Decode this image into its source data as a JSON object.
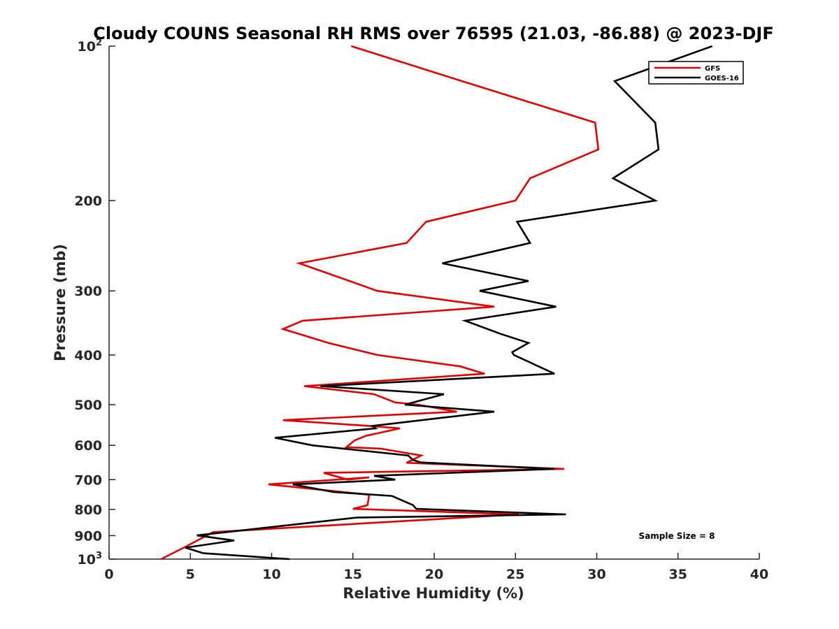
{
  "chart_data": {
    "type": "line",
    "title": "Cloudy COUNS Seasonal RH RMS over 76595 (21.03, -86.88) @ 2023-DJF",
    "xlabel": "Relative Humidity (%)",
    "ylabel": "Pressure (mb)",
    "xlim": [
      0,
      40
    ],
    "ylim": [
      100,
      1000
    ],
    "yscale": "log",
    "y_reversed": true,
    "x_ticks": [
      0,
      5,
      10,
      15,
      20,
      25,
      30,
      35,
      40
    ],
    "y_ticks": [
      {
        "value": 100,
        "label": "10",
        "sup": "2"
      },
      {
        "value": 200,
        "label": "200",
        "sup": ""
      },
      {
        "value": 300,
        "label": "300",
        "sup": ""
      },
      {
        "value": 400,
        "label": "400",
        "sup": ""
      },
      {
        "value": 500,
        "label": "500",
        "sup": ""
      },
      {
        "value": 600,
        "label": "600",
        "sup": ""
      },
      {
        "value": 700,
        "label": "700",
        "sup": ""
      },
      {
        "value": 800,
        "label": "800",
        "sup": ""
      },
      {
        "value": 900,
        "label": "900",
        "sup": ""
      },
      {
        "value": 1000,
        "label": "10",
        "sup": "3"
      }
    ],
    "legend_position": "top-right",
    "annotation": "Sample Size = 8",
    "series": [
      {
        "name": "GFS",
        "color": "#e00000",
        "points": [
          [
            14.9,
            100
          ],
          [
            21.7,
            117
          ],
          [
            29.9,
            141
          ],
          [
            30.1,
            159
          ],
          [
            25.9,
            181
          ],
          [
            25.0,
            200
          ],
          [
            19.5,
            220
          ],
          [
            18.3,
            242
          ],
          [
            11.7,
            265
          ],
          [
            14.8,
            287
          ],
          [
            16.5,
            300
          ],
          [
            23.7,
            322
          ],
          [
            11.9,
            343
          ],
          [
            10.7,
            356
          ],
          [
            13.5,
            379
          ],
          [
            16.5,
            400
          ],
          [
            21.6,
            421
          ],
          [
            23.1,
            435
          ],
          [
            12.0,
            460
          ],
          [
            16.3,
            477
          ],
          [
            17.6,
            495
          ],
          [
            19.0,
            500
          ],
          [
            21.4,
            516
          ],
          [
            10.7,
            536
          ],
          [
            16.0,
            550
          ],
          [
            17.9,
            556
          ],
          [
            15.8,
            575
          ],
          [
            15.1,
            587
          ],
          [
            14.6,
            605
          ],
          [
            16.7,
            609
          ],
          [
            19.2,
            628
          ],
          [
            18.3,
            649
          ],
          [
            28.0,
            667
          ],
          [
            13.2,
            679
          ],
          [
            14.7,
            700
          ],
          [
            16.0,
            693
          ],
          [
            9.8,
            715
          ],
          [
            16.0,
            749
          ],
          [
            15.9,
            785
          ],
          [
            15.0,
            798
          ],
          [
            25.2,
            818
          ],
          [
            6.4,
            886
          ],
          [
            4.6,
            950
          ],
          [
            3.2,
            1000
          ]
        ]
      },
      {
        "name": "GOES-16",
        "color": "#000000",
        "points": [
          [
            37.1,
            100
          ],
          [
            31.1,
            117
          ],
          [
            33.6,
            141
          ],
          [
            33.8,
            159
          ],
          [
            31.0,
            181
          ],
          [
            33.6,
            200
          ],
          [
            25.1,
            220
          ],
          [
            25.9,
            242
          ],
          [
            20.5,
            265
          ],
          [
            25.8,
            287
          ],
          [
            22.8,
            300
          ],
          [
            27.5,
            322
          ],
          [
            21.9,
            343
          ],
          [
            24.1,
            364
          ],
          [
            25.8,
            379
          ],
          [
            24.8,
            395
          ],
          [
            24.9,
            400
          ],
          [
            27.4,
            435
          ],
          [
            13.0,
            460
          ],
          [
            20.6,
            477
          ],
          [
            18.2,
            500
          ],
          [
            23.7,
            516
          ],
          [
            16.2,
            550
          ],
          [
            16.4,
            556
          ],
          [
            10.2,
            580
          ],
          [
            12.5,
            600
          ],
          [
            18.4,
            628
          ],
          [
            18.7,
            641
          ],
          [
            19.2,
            648
          ],
          [
            27.4,
            667
          ],
          [
            16.3,
            688
          ],
          [
            17.6,
            700
          ],
          [
            11.3,
            715
          ],
          [
            13.8,
            740
          ],
          [
            17.4,
            753
          ],
          [
            18.7,
            785
          ],
          [
            18.9,
            798
          ],
          [
            28.1,
            818
          ],
          [
            15.2,
            830
          ],
          [
            5.4,
            899
          ],
          [
            7.7,
            920
          ],
          [
            4.7,
            950
          ],
          [
            5.8,
            974
          ],
          [
            11.1,
            1000
          ]
        ]
      }
    ]
  }
}
